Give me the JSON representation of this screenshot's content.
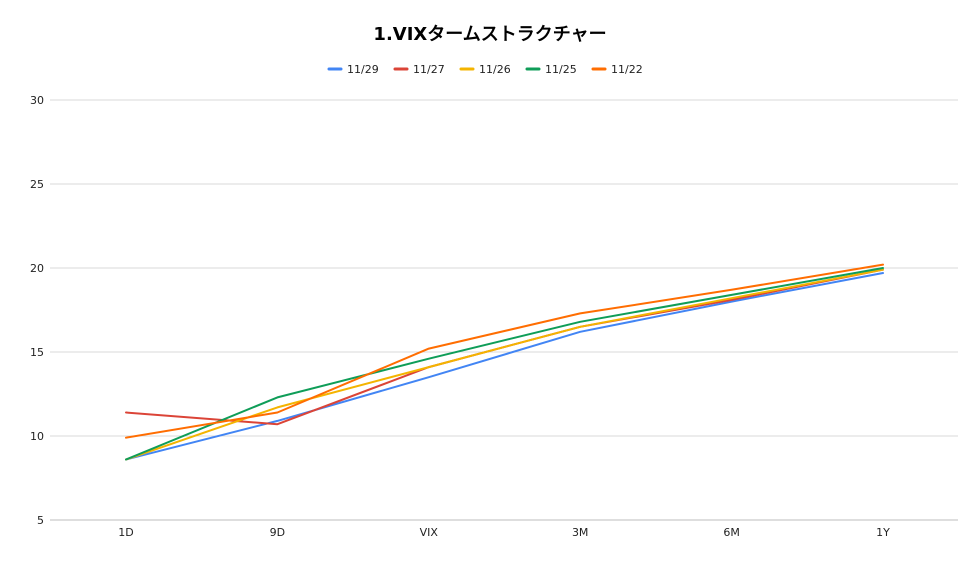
{
  "chart_data": {
    "type": "line",
    "title": "1.VIXタームストラクチャー",
    "xlabel": "",
    "ylabel": "",
    "categories": [
      "1D",
      "9D",
      "VIX",
      "3M",
      "6M",
      "1Y"
    ],
    "ylim": [
      5,
      30
    ],
    "yticks": [
      "5",
      "10",
      "15",
      "20",
      "25",
      "30"
    ],
    "grid": true,
    "legend_position": "top",
    "series": [
      {
        "name": "11/29",
        "color": "#4285F4",
        "values": [
          8.6,
          10.9,
          13.5,
          16.2,
          18.0,
          19.7
        ]
      },
      {
        "name": "11/27",
        "color": "#DB4437",
        "values": [
          11.4,
          10.7,
          14.1,
          16.5,
          18.1,
          19.9
        ]
      },
      {
        "name": "11/26",
        "color": "#F4B400",
        "values": [
          8.6,
          11.7,
          14.1,
          16.5,
          18.2,
          19.9
        ]
      },
      {
        "name": "11/25",
        "color": "#0F9D58",
        "values": [
          8.6,
          12.3,
          14.6,
          16.8,
          18.4,
          20.0
        ]
      },
      {
        "name": "11/22",
        "color": "#FF6D01",
        "values": [
          9.9,
          11.4,
          15.2,
          17.3,
          18.7,
          20.2
        ]
      }
    ]
  }
}
